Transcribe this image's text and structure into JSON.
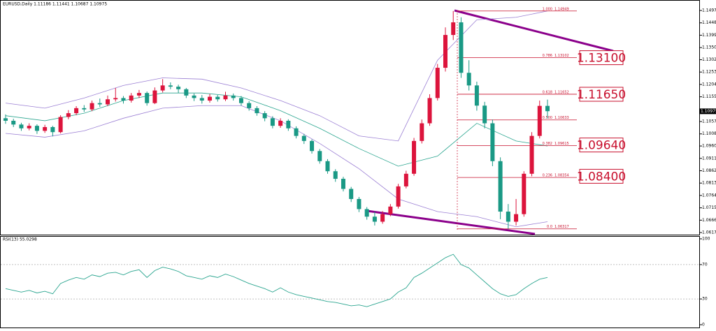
{
  "chart_data": {
    "type": "candlestick",
    "title": "EURUSD,Daily  1.11186 1.11441 1.10687 1.10975",
    "open": [
      1.107,
      1.106,
      1.1045,
      1.103,
      1.104,
      1.102,
      1.1035,
      1.1015,
      1.1075,
      1.109,
      1.111,
      1.1105,
      1.113,
      1.1125,
      1.1145,
      1.115,
      1.114,
      1.116,
      1.117,
      1.113,
      1.118,
      1.12,
      1.1195,
      1.1185,
      1.116,
      1.115,
      1.114,
      1.1155,
      1.1145,
      1.116,
      1.115,
      1.113,
      1.111,
      1.109,
      1.107,
      1.104,
      1.106,
      1.103,
      1.1,
      1.098,
      1.094,
      1.09,
      1.086,
      1.083,
      1.079,
      1.075,
      1.071,
      1.068,
      1.066,
      1.069,
      1.072,
      1.08,
      1.085,
      1.098,
      1.105,
      1.115,
      1.127,
      1.14,
      1.145,
      1.125,
      1.12,
      1.112,
      1.105,
      1.09,
      1.07,
      1.066,
      1.069,
      1.085,
      1.1,
      1.1119
    ],
    "high": [
      1.1085,
      1.1068,
      1.1052,
      1.105,
      1.1046,
      1.1044,
      1.104,
      1.1082,
      1.1102,
      1.1118,
      1.1122,
      1.114,
      1.1148,
      1.116,
      1.119,
      1.1158,
      1.117,
      1.1182,
      1.1176,
      1.1192,
      1.1225,
      1.1212,
      1.1203,
      1.119,
      1.1168,
      1.1162,
      1.1166,
      1.1162,
      1.1175,
      1.1168,
      1.1158,
      1.1138,
      1.1118,
      1.1098,
      1.1078,
      1.107,
      1.1066,
      1.1038,
      1.1008,
      1.0986,
      1.0948,
      1.0908,
      1.0868,
      1.0838,
      1.0798,
      1.0758,
      1.0718,
      1.07,
      1.0702,
      1.073,
      1.081,
      1.0862,
      1.0992,
      1.1065,
      1.1165,
      1.1285,
      1.143,
      1.1495,
      1.147,
      1.13,
      1.1215,
      1.1135,
      1.1065,
      1.0915,
      1.073,
      1.075,
      1.086,
      1.1015,
      1.114,
      1.1144
    ],
    "low": [
      1.1048,
      1.1035,
      1.102,
      1.1022,
      1.1008,
      1.1012,
      1.0998,
      1.101,
      1.1066,
      1.1082,
      1.1095,
      1.1098,
      1.1115,
      1.1118,
      1.1136,
      1.1128,
      1.1132,
      1.115,
      1.112,
      1.1126,
      1.1172,
      1.1185,
      1.117,
      1.115,
      1.1138,
      1.1128,
      1.1132,
      1.1136,
      1.1138,
      1.114,
      1.112,
      1.11,
      1.108,
      1.1058,
      1.103,
      1.1032,
      1.102,
      1.099,
      1.0968,
      1.093,
      1.089,
      1.085,
      1.0818,
      1.078,
      1.0738,
      1.0698,
      1.0668,
      1.0645,
      1.0652,
      1.0682,
      1.0712,
      1.0792,
      1.0842,
      1.097,
      1.104,
      1.114,
      1.1255,
      1.138,
      1.123,
      1.118,
      1.11,
      1.103,
      1.088,
      1.067,
      1.0632,
      1.0645,
      1.068,
      1.084,
      1.099,
      1.1069
    ],
    "close": [
      1.106,
      1.1045,
      1.103,
      1.104,
      1.102,
      1.1035,
      1.1015,
      1.1075,
      1.109,
      1.111,
      1.1105,
      1.113,
      1.1125,
      1.1145,
      1.115,
      1.114,
      1.116,
      1.117,
      1.113,
      1.118,
      1.12,
      1.1195,
      1.1185,
      1.116,
      1.115,
      1.114,
      1.1155,
      1.1145,
      1.116,
      1.115,
      1.113,
      1.111,
      1.109,
      1.107,
      1.104,
      1.106,
      1.103,
      1.1,
      1.098,
      1.094,
      1.09,
      1.086,
      1.083,
      1.079,
      1.075,
      1.071,
      1.068,
      1.066,
      1.069,
      1.072,
      1.08,
      1.085,
      1.098,
      1.105,
      1.115,
      1.127,
      1.14,
      1.145,
      1.125,
      1.12,
      1.112,
      1.105,
      1.09,
      1.07,
      1.066,
      1.069,
      1.085,
      1.1,
      1.1119,
      1.1098
    ],
    "up_color": "#dc143c",
    "down_color": "#1a9985",
    "bands": {
      "x": [
        0,
        5,
        10,
        15,
        20,
        25,
        30,
        35,
        40,
        45,
        50,
        55,
        60,
        65,
        69
      ],
      "series": [
        {
          "color": "#9b7fd4",
          "values": [
            1.113,
            1.111,
            1.115,
            1.12,
            1.123,
            1.1225,
            1.119,
            1.114,
            1.108,
            1.1,
            1.098,
            1.13,
            1.146,
            1.147,
            1.1495
          ]
        },
        {
          "color": "#2aa58f",
          "values": [
            1.108,
            1.106,
            1.109,
            1.114,
            1.117,
            1.117,
            1.1155,
            1.11,
            1.103,
            1.095,
            1.088,
            1.092,
            1.105,
            1.098,
            1.096
          ]
        },
        {
          "color": "#9b7fd4",
          "values": [
            1.101,
            1.0995,
            1.102,
            1.107,
            1.111,
            1.112,
            1.112,
            1.106,
            1.097,
            1.087,
            1.075,
            1.07,
            1.068,
            1.064,
            1.066
          ]
        }
      ]
    },
    "ylim": [
      1.0606,
      1.1533
    ],
    "yticks": [
      {
        "value": 1.1497,
        "label": "1.14970"
      },
      {
        "value": 1.1448,
        "label": "1.14480"
      },
      {
        "value": 1.1399,
        "label": "1.13990"
      },
      {
        "value": 1.135,
        "label": "1.13500"
      },
      {
        "value": 1.1302,
        "label": "1.13020"
      },
      {
        "value": 1.1253,
        "label": "1.12530"
      },
      {
        "value": 1.1204,
        "label": "1.12040"
      },
      {
        "value": 1.1155,
        "label": "1.11550"
      },
      {
        "value": 1.1057,
        "label": "1.10570"
      },
      {
        "value": 1.1008,
        "label": "1.10080"
      },
      {
        "value": 1.096,
        "label": "1.09600"
      },
      {
        "value": 1.0911,
        "label": "1.09110"
      },
      {
        "value": 1.0862,
        "label": "1.08620"
      },
      {
        "value": 1.0813,
        "label": "1.08130"
      },
      {
        "value": 1.0764,
        "label": "1.07640"
      },
      {
        "value": 1.0715,
        "label": "1.07150"
      },
      {
        "value": 1.0666,
        "label": "1.06660"
      },
      {
        "value": 1.0617,
        "label": "1.06170"
      }
    ],
    "current_price": 1.10975,
    "fib": [
      {
        "ratio": "1.000",
        "price": 1.14949
      },
      {
        "ratio": "0.786",
        "price": 1.13102
      },
      {
        "ratio": "0.618",
        "price": 1.11652
      },
      {
        "ratio": "0.500",
        "price": 1.10633
      },
      {
        "ratio": "0.382",
        "price": 1.09615
      },
      {
        "ratio": "0.236",
        "price": 1.08354
      },
      {
        "ratio": "0.0",
        "price": 1.06317
      }
    ],
    "fib_color": "#c8102e",
    "levels": [
      {
        "value": 1.131,
        "label": "1.13100"
      },
      {
        "value": 1.1165,
        "label": "1.11650"
      },
      {
        "value": 1.0964,
        "label": "1.09640"
      },
      {
        "value": 1.084,
        "label": "1.08400"
      }
    ],
    "rsi": {
      "title": "RSI(13) 55.0298",
      "color": "#2aa58f",
      "values": [
        42,
        40,
        38,
        40,
        37,
        39,
        36,
        48,
        52,
        55,
        53,
        58,
        56,
        60,
        61,
        58,
        62,
        64,
        55,
        63,
        67,
        65,
        62,
        57,
        55,
        53,
        57,
        55,
        59,
        56,
        52,
        48,
        45,
        42,
        38,
        43,
        38,
        35,
        33,
        31,
        29,
        27,
        26,
        24,
        22,
        23,
        21,
        24,
        27,
        30,
        38,
        43,
        55,
        60,
        66,
        72,
        78,
        82,
        70,
        66,
        58,
        50,
        42,
        36,
        33,
        35,
        42,
        48,
        53,
        55.03
      ],
      "ylim": [
        0,
        100
      ],
      "yticks": [
        100,
        70,
        30,
        0
      ],
      "levels": [
        70,
        30
      ]
    }
  }
}
